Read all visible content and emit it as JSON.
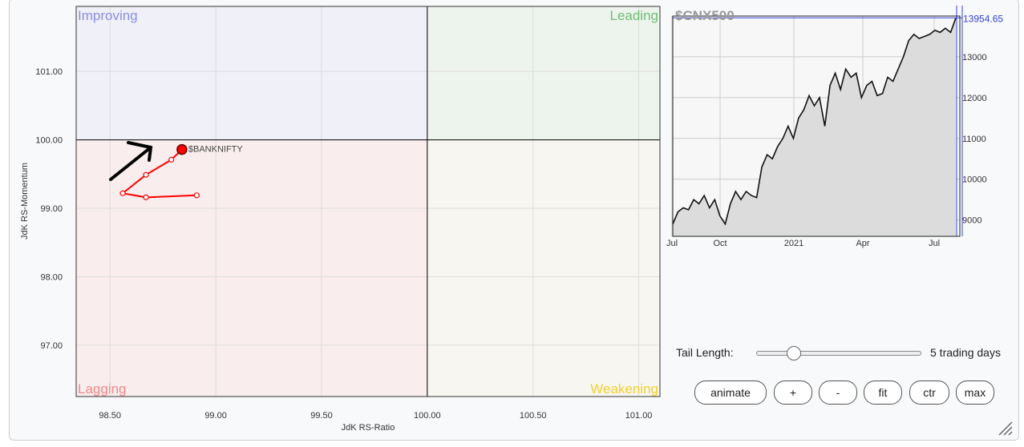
{
  "chart_data": [
    {
      "type": "scatter",
      "title": "",
      "xlabel": "JdK RS-Ratio",
      "ylabel": "JdK RS-Momentum",
      "xlim": [
        98.34,
        101.1
      ],
      "ylim": [
        96.25,
        101.95
      ],
      "xticks": [
        "98.50",
        "99.00",
        "99.50",
        "100.00",
        "100.50",
        "101.00"
      ],
      "yticks": [
        "97.00",
        "98.00",
        "99.00",
        "100.00",
        "101.00"
      ],
      "quadrants": {
        "improving": "Improving",
        "leading": "Leading",
        "lagging": "Lagging",
        "weakening": "Weakening"
      },
      "quadrant_colors": {
        "improving": "#eff0f8",
        "leading": "#edf3ed",
        "lagging": "#f9eded",
        "weakening": "#f8f6f0"
      },
      "quadrant_label_colors": {
        "improving": "#8a8fe0",
        "leading": "#6fbf73",
        "lagging": "#f08a8a",
        "weakening": "#f0d030"
      },
      "series": [
        {
          "name": "$BANKNIFTY",
          "color": "#ff0000",
          "points": [
            [
              98.91,
              99.19
            ],
            [
              98.67,
              99.16
            ],
            [
              98.56,
              99.22
            ],
            [
              98.67,
              99.49
            ],
            [
              98.79,
              99.71
            ],
            [
              98.84,
              99.86
            ]
          ]
        }
      ],
      "grid": true
    },
    {
      "type": "area",
      "title": "$CNX500",
      "ylim": [
        8600,
        14000
      ],
      "xticks": [
        "Jul",
        "Oct",
        "2021",
        "Apr",
        "Jul"
      ],
      "yticks": [
        "9000",
        "10000",
        "11000",
        "12000",
        "13000"
      ],
      "last_value": "13954.65",
      "highlight_color": "#3344dd",
      "values": [
        8900,
        9200,
        9300,
        9250,
        9500,
        9400,
        9600,
        9300,
        9500,
        9100,
        8900,
        9400,
        9700,
        9500,
        9700,
        9600,
        9550,
        10300,
        10600,
        10500,
        10800,
        11000,
        11300,
        11000,
        11500,
        11700,
        12050,
        11800,
        12000,
        11300,
        12300,
        12600,
        12200,
        12700,
        12500,
        12600,
        12000,
        12300,
        12400,
        12050,
        12100,
        12500,
        12400,
        12700,
        13000,
        13400,
        13550,
        13450,
        13500,
        13550,
        13650,
        13600,
        13700,
        13600,
        13954.65
      ],
      "grid": true
    }
  ],
  "controls": {
    "tail_label": "Tail Length:",
    "tail_value": "5 trading days",
    "tail_fraction": 0.2,
    "buttons": [
      "animate",
      "+",
      "-",
      "fit",
      "ctr",
      "max"
    ]
  }
}
